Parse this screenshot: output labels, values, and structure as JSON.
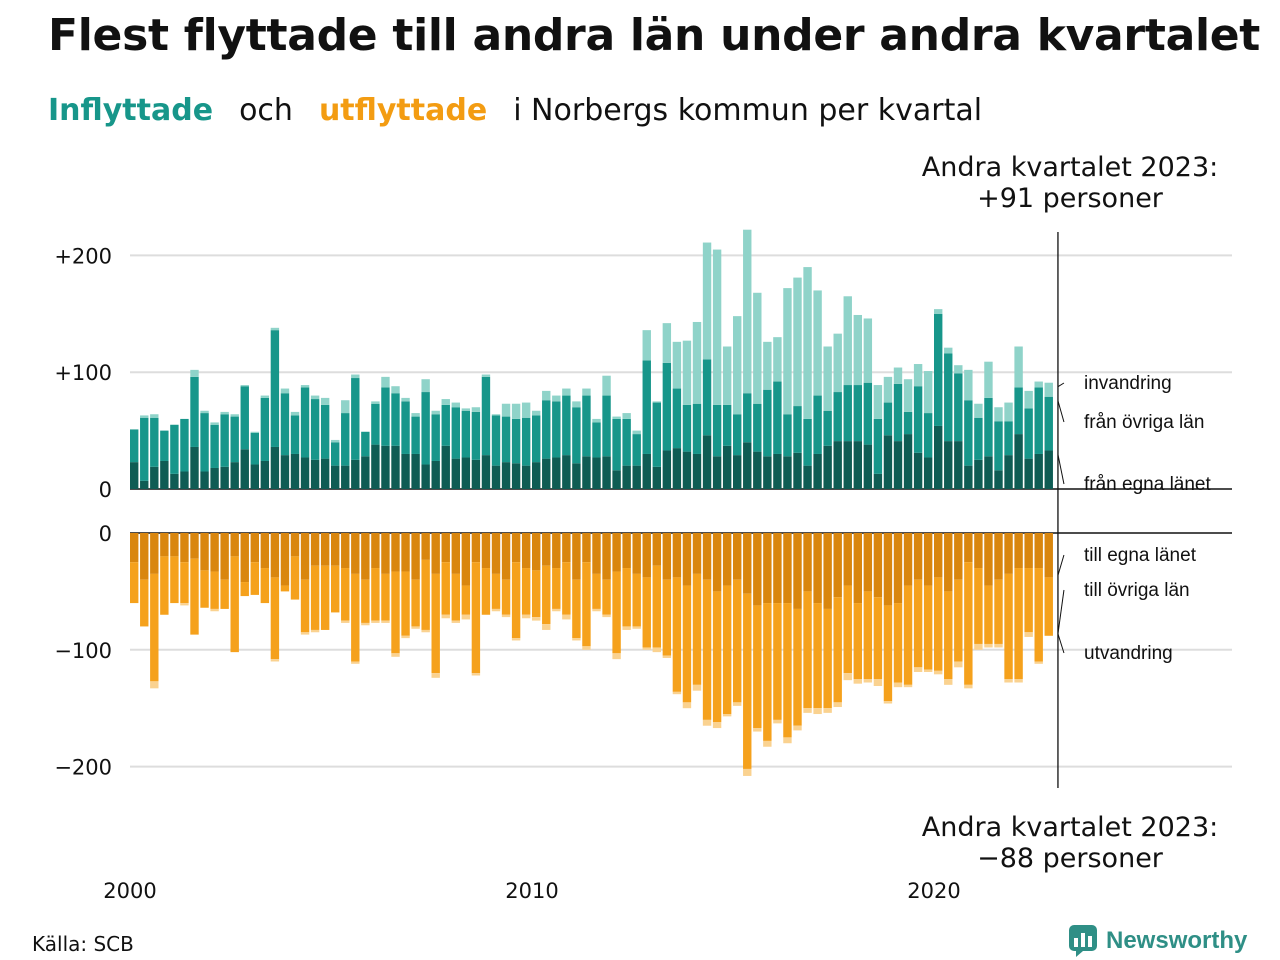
{
  "title": "Flest flyttade till andra län under andra kvartalet",
  "subtitle": {
    "part1": "Inflyttade",
    "part2": "och",
    "part3": "utflyttade",
    "part4": "i Norbergs kommun per kvartal"
  },
  "annotations": {
    "top_line1": "Andra kvartalet 2023:",
    "top_line2": "+91 personer",
    "bottom_line1": "Andra kvartalet 2023:",
    "bottom_line2": "−88 personer"
  },
  "source": "Källa: SCB",
  "brand": "Newsworthy",
  "colors": {
    "in_own": "#0f5c54",
    "in_other": "#17968a",
    "in_immigration": "#8fd3c9",
    "out_own": "#d9860e",
    "out_other": "#f5a11c",
    "out_emigration": "#fad290",
    "subtitle_in": "#17968a",
    "subtitle_out": "#f39c12",
    "grid": "#dddddd"
  },
  "chart_data": {
    "type": "bar",
    "stacked": true,
    "x_tick_labels": [
      "2000",
      "2010",
      "2020"
    ],
    "x_first_quarter": "2000 Q1",
    "x_last_quarter": "2023 Q2",
    "panels": [
      {
        "name": "inflyttade",
        "y_ticks": [
          0,
          100,
          200
        ],
        "y_tick_labels": [
          "0",
          "+100",
          "+200"
        ],
        "ylim": [
          0,
          220
        ],
        "series_labels": [
          "invandring",
          "från övriga län",
          "från egna länet"
        ],
        "series": [
          {
            "name": "från egna länet",
            "values": [
              23,
              7,
              19,
              24,
              13,
              15,
              36,
              15,
              18,
              19,
              23,
              34,
              21,
              24,
              36,
              29,
              30,
              27,
              25,
              26,
              20,
              20,
              25,
              28,
              38,
              37,
              37,
              30,
              30,
              21,
              24,
              37,
              26,
              27,
              25,
              29,
              20,
              23,
              22,
              20,
              23,
              26,
              27,
              29,
              22,
              28,
              27,
              28,
              16,
              20,
              20,
              30,
              19,
              33,
              35,
              32,
              30,
              46,
              28,
              37,
              29,
              40,
              32,
              28,
              30,
              28,
              31,
              20,
              30,
              37,
              41,
              41,
              41,
              38,
              13,
              46,
              41,
              47,
              31,
              27,
              54,
              41,
              41,
              20,
              25,
              28,
              16,
              29,
              47,
              26,
              30,
              33
            ]
          },
          {
            "name": "från övriga län",
            "values": [
              28,
              54,
              42,
              26,
              42,
              45,
              60,
              50,
              37,
              45,
              39,
              54,
              27,
              54,
              100,
              53,
              33,
              60,
              52,
              46,
              20,
              45,
              70,
              21,
              35,
              50,
              45,
              45,
              32,
              62,
              40,
              35,
              44,
              40,
              41,
              67,
              43,
              39,
              38,
              41,
              40,
              50,
              48,
              51,
              48,
              52,
              30,
              52,
              44,
              40,
              27,
              80,
              55,
              75,
              51,
              40,
              43,
              65,
              44,
              35,
              35,
              42,
              41,
              57,
              62,
              36,
              40,
              40,
              50,
              30,
              42,
              48,
              48,
              53,
              47,
              28,
              49,
              19,
              57,
              38,
              96,
              75,
              58,
              56,
              36,
              50,
              42,
              29,
              40,
              43,
              57,
              46
            ]
          },
          {
            "name": "invandring",
            "values": [
              0,
              2,
              3,
              0,
              0,
              0,
              6,
              2,
              2,
              2,
              2,
              1,
              1,
              2,
              2,
              4,
              3,
              2,
              3,
              6,
              2,
              11,
              3,
              0,
              2,
              9,
              6,
              3,
              3,
              11,
              3,
              5,
              4,
              2,
              4,
              2,
              1,
              11,
              13,
              13,
              4,
              8,
              5,
              6,
              5,
              6,
              3,
              17,
              2,
              5,
              3,
              26,
              1,
              34,
              40,
              55,
              70,
              100,
              133,
              50,
              84,
              140,
              95,
              41,
              38,
              108,
              110,
              130,
              90,
              55,
              50,
              76,
              60,
              55,
              29,
              22,
              14,
              28,
              19,
              36,
              4,
              5,
              7,
              26,
              12,
              31,
              12,
              16,
              35,
              15,
              5,
              12
            ]
          }
        ]
      },
      {
        "name": "utflyttade",
        "y_ticks": [
          0,
          -100,
          -200
        ],
        "y_tick_labels": [
          "0",
          "−100",
          "−200"
        ],
        "ylim": [
          -220,
          0
        ],
        "series_labels": [
          "till egna länet",
          "till övriga län",
          "utvandring"
        ],
        "series": [
          {
            "name": "till egna länet",
            "values": [
              -25,
              -40,
              -35,
              -20,
              -20,
              -25,
              -22,
              -32,
              -33,
              -40,
              -20,
              -42,
              -25,
              -30,
              -38,
              -45,
              -20,
              -40,
              -28,
              -28,
              -28,
              -30,
              -35,
              -40,
              -30,
              -35,
              -33,
              -33,
              -40,
              -23,
              -35,
              -25,
              -35,
              -45,
              -25,
              -30,
              -35,
              -40,
              -25,
              -30,
              -32,
              -28,
              -30,
              -25,
              -40,
              -25,
              -35,
              -40,
              -33,
              -30,
              -35,
              -38,
              -28,
              -40,
              -38,
              -45,
              -35,
              -40,
              -50,
              -45,
              -40,
              -52,
              -62,
              -60,
              -60,
              -60,
              -65,
              -50,
              -60,
              -65,
              -55,
              -45,
              -60,
              -50,
              -55,
              -62,
              -60,
              -45,
              -40,
              -45,
              -38,
              -50,
              -40,
              -25,
              -30,
              -45,
              -40,
              -35,
              -30,
              -30,
              -30,
              -38
            ]
          },
          {
            "name": "till övriga län",
            "values": [
              -35,
              -40,
              -92,
              -50,
              -40,
              -35,
              -65,
              -32,
              -32,
              -25,
              -82,
              -12,
              -28,
              -30,
              -70,
              -5,
              -37,
              -45,
              -55,
              -55,
              -40,
              -45,
              -75,
              -37,
              -45,
              -40,
              -70,
              -55,
              -40,
              -60,
              -85,
              -45,
              -40,
              -25,
              -95,
              -40,
              -30,
              -30,
              -65,
              -40,
              -40,
              -50,
              -35,
              -45,
              -50,
              -72,
              -30,
              -30,
              -70,
              -50,
              -45,
              -60,
              -70,
              -65,
              -98,
              -100,
              -95,
              -120,
              -112,
              -110,
              -105,
              -150,
              -105,
              -118,
              -100,
              -115,
              -100,
              -100,
              -90,
              -85,
              -90,
              -75,
              -65,
              -75,
              -70,
              -82,
              -68,
              -85,
              -75,
              -72,
              -80,
              -75,
              -70,
              -105,
              -65,
              -50,
              -55,
              -90,
              -95,
              -55,
              -80,
              -50
            ]
          },
          {
            "name": "utvandring",
            "values": [
              0,
              0,
              -6,
              0,
              0,
              -2,
              0,
              0,
              -2,
              0,
              0,
              0,
              0,
              0,
              -2,
              0,
              0,
              -2,
              -2,
              0,
              0,
              -2,
              -2,
              -2,
              -2,
              -2,
              -3,
              -2,
              -2,
              -2,
              -4,
              -3,
              -2,
              -4,
              -2,
              0,
              -2,
              -2,
              -2,
              -3,
              -3,
              -5,
              -2,
              -4,
              -2,
              -3,
              -2,
              -2,
              -5,
              -3,
              -2,
              -2,
              -4,
              -2,
              -2,
              -5,
              -5,
              -5,
              -5,
              -2,
              -3,
              -6,
              -3,
              -5,
              -3,
              -5,
              -4,
              -4,
              -5,
              -4,
              -4,
              -6,
              -4,
              -3,
              -6,
              -2,
              -4,
              -2,
              -4,
              -2,
              -3,
              -5,
              -5,
              -3,
              -5,
              -3,
              -3,
              -3,
              -3,
              -4,
              -2,
              0
            ]
          }
        ]
      }
    ]
  }
}
